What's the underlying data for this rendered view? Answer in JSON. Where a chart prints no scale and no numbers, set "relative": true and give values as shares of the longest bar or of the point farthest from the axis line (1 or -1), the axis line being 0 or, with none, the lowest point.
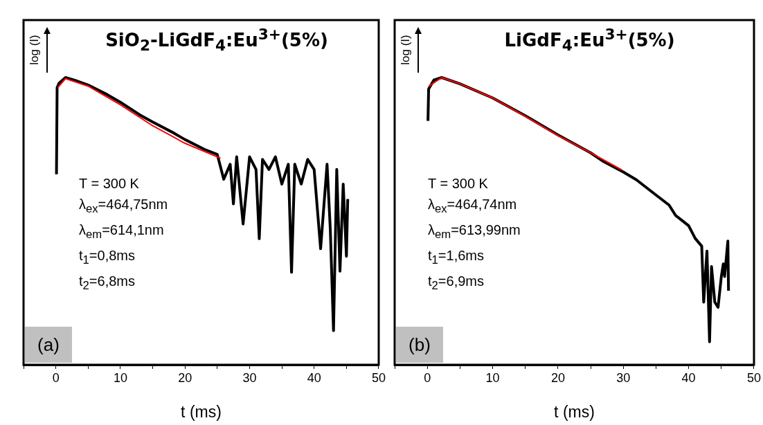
{
  "chart_data": [
    {
      "type": "line",
      "title": "SiO$_{2}$-LiGdF$_{4}$:Eu$^{3+}$(5%)",
      "xlabel": "t (ms)",
      "ylabel": "log (I)",
      "relative": true,
      "marker": "none",
      "line_style": "solid",
      "xlim": [
        -5,
        50
      ],
      "xticks": [
        {
          "value": -5,
          "label": null
        },
        0,
        {
          "value": 5,
          "label": null
        },
        10,
        {
          "value": 15,
          "label": null
        },
        20,
        {
          "value": 25,
          "label": null
        },
        30,
        {
          "value": 35,
          "label": null
        },
        40,
        {
          "value": 45,
          "label": null
        },
        50
      ],
      "series": [
        {
          "color": "#000000",
          "x": [
            0.1,
            0.2,
            0.5,
            1.5,
            3,
            5,
            8,
            10,
            13,
            15,
            18,
            20,
            23,
            25,
            26,
            27,
            27.5,
            28,
            29,
            30,
            31,
            31.5,
            32,
            33,
            34,
            35,
            36,
            36.5,
            37,
            38,
            39,
            40,
            41,
            42,
            42.5,
            43,
            43.5,
            44,
            44.5,
            45,
            45.2
          ],
          "values": [
            0.663,
            0.965,
            0.98,
            1,
            0.99,
            0.974,
            0.94,
            0.914,
            0.87,
            0.845,
            0.81,
            0.784,
            0.75,
            0.732,
            0.646,
            0.698,
            0.56,
            0.724,
            0.49,
            0.724,
            0.68,
            0.439,
            0.715,
            0.68,
            0.724,
            0.629,
            0.698,
            0.322,
            0.698,
            0.629,
            0.715,
            0.68,
            0.404,
            0.698,
            0.473,
            0.119,
            0.68,
            0.326,
            0.629,
            0.378,
            0.577
          ]
        },
        {
          "color": "#ff0000",
          "x": [
            0.3,
            1.5,
            5,
            10,
            15,
            20,
            25.5
          ],
          "values": [
            0.965,
            0.996,
            0.97,
            0.905,
            0.832,
            0.771,
            0.719
          ]
        }
      ],
      "annotations": [
        "T = 300 K",
        "λ$_{ex}$=464,75nm",
        "λ$_{em}$=614,1nm",
        "t$_{1}$=0,8ms",
        "t$_{2}$=6,8ms",
        "(a)"
      ]
    },
    {
      "type": "line",
      "title": "LiGdF$_{4}$:Eu$^{3+}$(5%)",
      "xlabel": "t (ms)",
      "ylabel": "log (I)",
      "relative": true,
      "marker": "none",
      "line_style": "solid",
      "xlim": [
        -5,
        50
      ],
      "xticks": [
        {
          "value": -5,
          "label": null
        },
        0,
        {
          "value": 5,
          "label": null
        },
        10,
        {
          "value": 15,
          "label": null
        },
        20,
        {
          "value": 25,
          "label": null
        },
        30,
        {
          "value": 35,
          "label": null
        },
        40,
        {
          "value": 45,
          "label": null
        },
        50
      ],
      "series": [
        {
          "color": "#000000",
          "x": [
            0.1,
            0.2,
            1,
            2.2,
            5,
            10,
            15,
            20,
            25,
            27,
            30,
            32,
            35,
            37,
            38,
            39,
            40,
            41,
            42,
            42.3,
            42.8,
            43.2,
            43.5,
            44,
            44.5,
            45,
            45.3,
            45.5,
            46,
            46.1
          ],
          "values": [
            0.849,
            0.96,
            0.991,
            1,
            0.978,
            0.929,
            0.867,
            0.8,
            0.738,
            0.707,
            0.671,
            0.644,
            0.591,
            0.556,
            0.52,
            0.502,
            0.484,
            0.44,
            0.413,
            0.218,
            0.396,
            0.08,
            0.342,
            0.218,
            0.2,
            0.307,
            0.351,
            0.307,
            0.431,
            0.258
          ]
        },
        {
          "color": "#ff0000",
          "x": [
            0.2,
            2.2,
            5,
            10,
            15,
            20,
            25,
            29.8
          ],
          "values": [
            0.969,
            1,
            0.978,
            0.929,
            0.865,
            0.798,
            0.738,
            0.678
          ]
        }
      ],
      "annotations": [
        "T = 300 K",
        "λ$_{ex}$=464,74nm",
        "λ$_{em}$=613,99nm",
        "t$_{1}$=1,6ms",
        "t$_{2}$=6,9ms",
        "(b)"
      ]
    }
  ]
}
